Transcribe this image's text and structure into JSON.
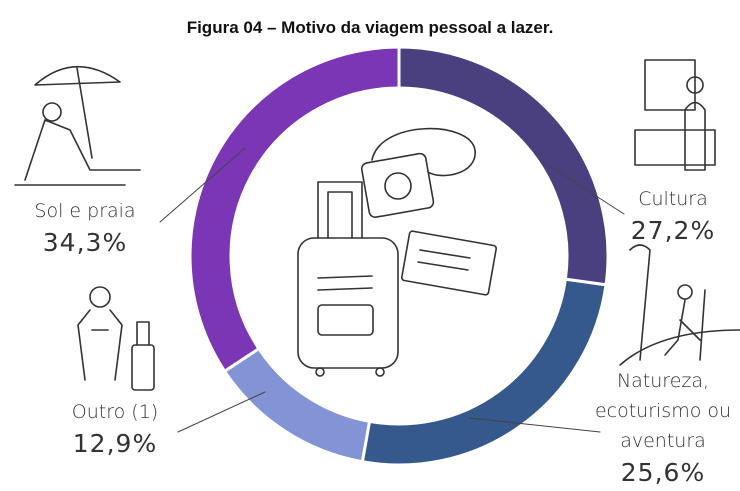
{
  "chart_data": {
    "type": "donut",
    "title": "Figura 04 – Motivo da viagem pessoal a lazer.",
    "categories": [
      "Cultura",
      "Natureza, ecoturismo ou aventura",
      "Outro (1)",
      "Sol e praia"
    ],
    "values": [
      27.2,
      25.6,
      12.9,
      34.3
    ],
    "value_labels": [
      "27,2%",
      "25,6%",
      "12,9%",
      "34,3%"
    ],
    "colors": [
      "#4b407f",
      "#35598c",
      "#8294d6",
      "#7b36b5"
    ]
  }
}
